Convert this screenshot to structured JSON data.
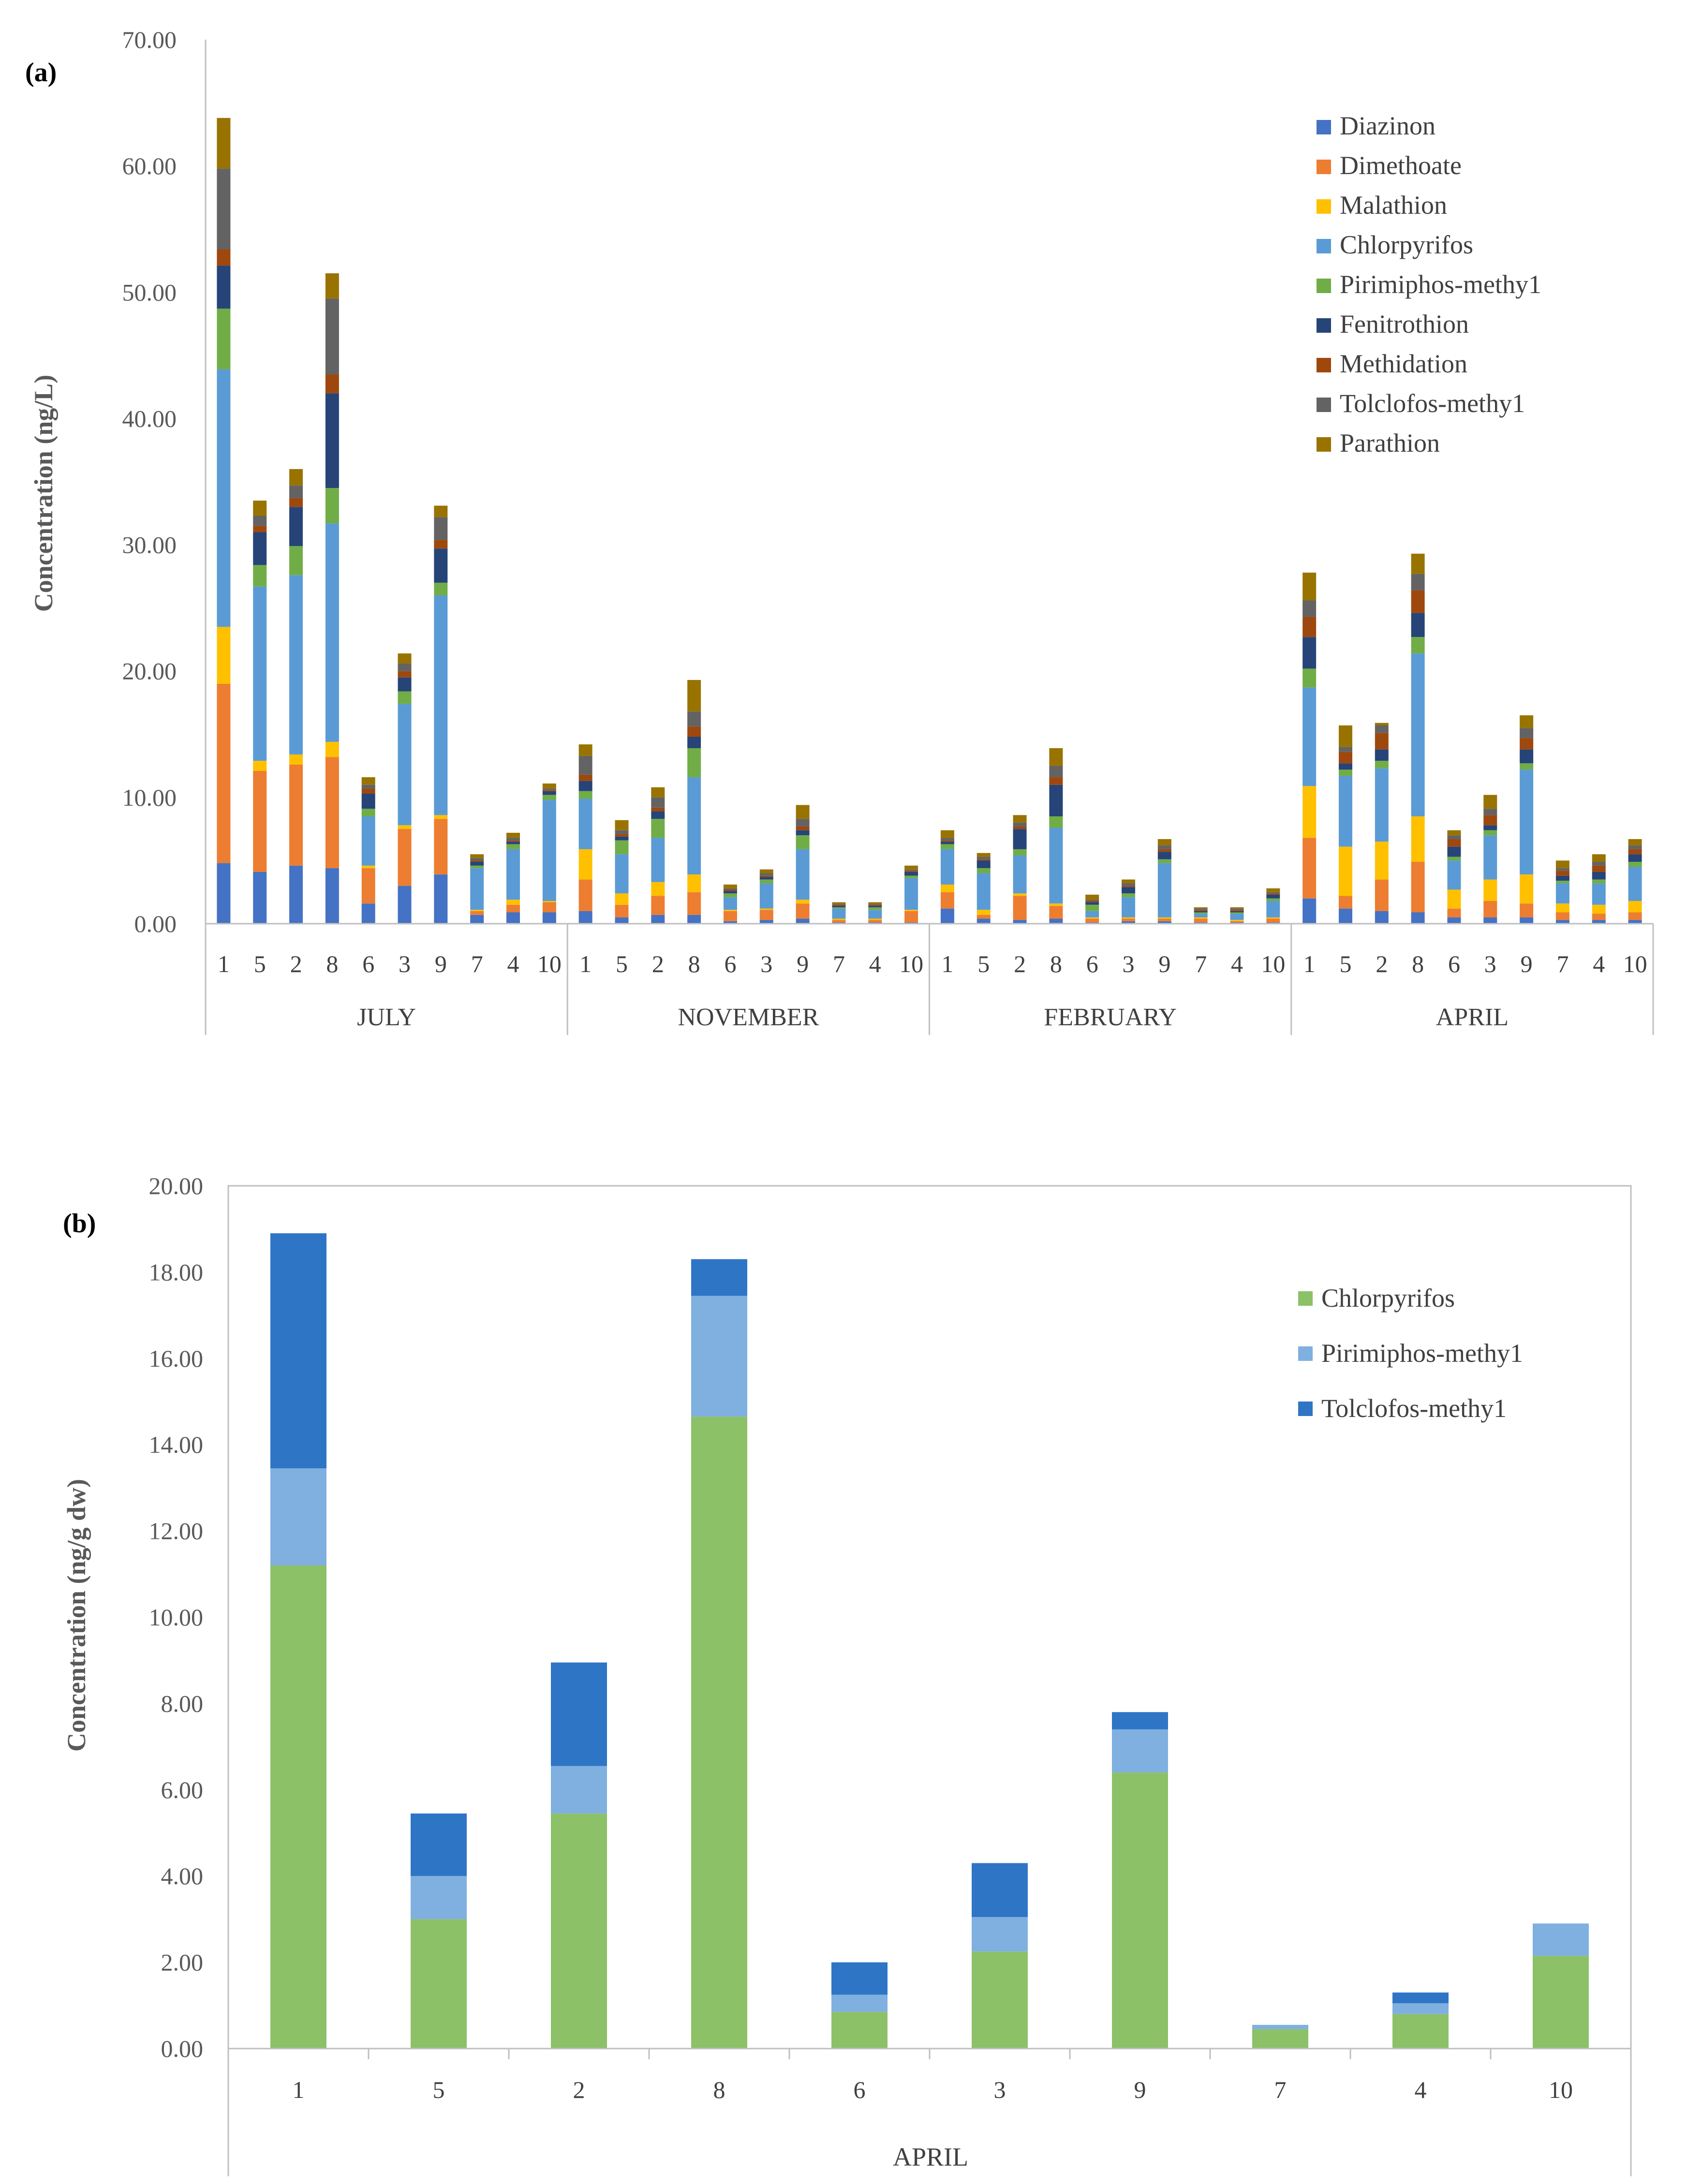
{
  "figure": {
    "background": "#ffffff",
    "axis_color": "#bfbfbf"
  },
  "chart_data": [
    {
      "id": "a",
      "type": "bar",
      "stacked": true,
      "panel_label": "(a)",
      "ylabel": "Concentration (ng/L)",
      "ylim": [
        0,
        70
      ],
      "yticks": [
        0,
        10,
        20,
        30,
        40,
        50,
        60,
        70
      ],
      "ytick_labels": [
        "0.00",
        "10.00",
        "20.00",
        "30.00",
        "40.00",
        "50.00",
        "60.00",
        "70.00"
      ],
      "legend_position": "top-right",
      "groups": [
        "JULY",
        "NOVEMBER",
        "FEBRUARY",
        "APRIL"
      ],
      "categories": [
        "1",
        "5",
        "2",
        "8",
        "6",
        "3",
        "9",
        "7",
        "4",
        "10"
      ],
      "series": [
        {
          "name": "Diazinon",
          "color": "#4472c4",
          "values": [
            [
              4.8,
              4.1,
              4.6,
              4.4,
              1.6,
              3.0,
              3.9,
              0.7,
              0.9,
              0.9
            ],
            [
              1.0,
              0.5,
              0.7,
              0.7,
              0.2,
              0.3,
              0.4,
              0.1,
              0.1,
              0.1
            ],
            [
              1.2,
              0.4,
              0.3,
              0.4,
              0.1,
              0.2,
              0.2,
              0.1,
              0.1,
              0.1
            ],
            [
              2.0,
              1.2,
              1.0,
              0.9,
              0.5,
              0.5,
              0.5,
              0.3,
              0.3,
              0.3
            ]
          ]
        },
        {
          "name": "Dimethoate",
          "color": "#ed7d31",
          "values": [
            [
              14.2,
              8.0,
              8.0,
              8.8,
              2.8,
              4.5,
              4.4,
              0.3,
              0.6,
              0.8
            ],
            [
              2.5,
              1.0,
              1.5,
              1.8,
              0.8,
              0.8,
              1.2,
              0.2,
              0.2,
              0.9
            ],
            [
              1.3,
              0.3,
              1.9,
              1.0,
              0.3,
              0.2,
              0.2,
              0.3,
              0.1,
              0.3
            ],
            [
              4.8,
              1.0,
              2.5,
              4.0,
              0.7,
              1.3,
              1.1,
              0.6,
              0.5,
              0.6
            ]
          ]
        },
        {
          "name": "Malathion",
          "color": "#ffc000",
          "values": [
            [
              4.5,
              0.8,
              0.8,
              1.2,
              0.2,
              0.3,
              0.3,
              0.1,
              0.4,
              0.1
            ],
            [
              2.4,
              0.9,
              1.1,
              1.4,
              0.1,
              0.1,
              0.3,
              0.1,
              0.1,
              0.1
            ],
            [
              0.6,
              0.4,
              0.2,
              0.2,
              0.1,
              0.1,
              0.1,
              0.1,
              0.1,
              0.1
            ],
            [
              4.1,
              3.9,
              3.0,
              3.6,
              1.5,
              1.7,
              2.3,
              0.7,
              0.7,
              0.9
            ]
          ]
        },
        {
          "name": "Chlorpyrifos",
          "color": "#5b9bd5",
          "values": [
            [
              20.4,
              13.8,
              14.2,
              17.3,
              3.9,
              9.6,
              17.4,
              3.3,
              4.0,
              8.0
            ],
            [
              4.0,
              3.1,
              3.5,
              7.7,
              1.0,
              2.0,
              4.0,
              0.8,
              0.7,
              2.5
            ],
            [
              2.8,
              2.9,
              3.0,
              6.0,
              0.5,
              1.6,
              4.3,
              0.3,
              0.5,
              1.3
            ],
            [
              7.8,
              5.6,
              5.8,
              12.9,
              2.3,
              3.5,
              8.3,
              1.6,
              1.7,
              2.7
            ]
          ]
        },
        {
          "name": "Pirimiphos-methy1",
          "color": "#70ad47",
          "values": [
            [
              4.8,
              1.7,
              2.3,
              2.8,
              0.6,
              1.0,
              1.0,
              0.2,
              0.4,
              0.4
            ],
            [
              0.6,
              1.1,
              1.5,
              2.3,
              0.3,
              0.3,
              1.1,
              0.1,
              0.2,
              0.2
            ],
            [
              0.4,
              0.4,
              0.5,
              0.9,
              0.5,
              0.3,
              0.3,
              0.1,
              0.1,
              0.2
            ],
            [
              1.5,
              0.5,
              0.6,
              1.3,
              0.3,
              0.4,
              0.5,
              0.2,
              0.3,
              0.4
            ]
          ]
        },
        {
          "name": "Fenitrothion",
          "color": "#264478",
          "values": [
            [
              3.4,
              2.6,
              3.1,
              7.5,
              1.2,
              1.1,
              2.7,
              0.3,
              0.2,
              0.3
            ],
            [
              0.8,
              0.3,
              0.6,
              0.9,
              0.2,
              0.2,
              0.4,
              0.1,
              0.1,
              0.3
            ],
            [
              0.2,
              0.6,
              1.6,
              2.5,
              0.2,
              0.5,
              0.6,
              0.1,
              0.1,
              0.3
            ],
            [
              2.5,
              0.5,
              0.9,
              1.9,
              0.8,
              0.4,
              1.1,
              0.4,
              0.6,
              0.6
            ]
          ]
        },
        {
          "name": "Methidation",
          "color": "#9e480e",
          "values": [
            [
              1.3,
              0.5,
              0.7,
              1.5,
              0.4,
              0.5,
              0.7,
              0.1,
              0.1,
              0.1
            ],
            [
              0.5,
              0.2,
              0.3,
              0.8,
              0.1,
              0.1,
              0.3,
              0.1,
              0.1,
              0.1
            ],
            [
              0.1,
              0.1,
              0.2,
              0.6,
              0.1,
              0.1,
              0.2,
              0.1,
              0.1,
              0.1
            ],
            [
              1.6,
              0.9,
              1.3,
              1.8,
              0.6,
              0.8,
              0.9,
              0.4,
              0.5,
              0.4
            ]
          ]
        },
        {
          "name": "Tolclofos-methy1",
          "color": "#636363",
          "values": [
            [
              6.4,
              0.8,
              1.0,
              6.0,
              0.3,
              0.6,
              1.8,
              0.2,
              0.2,
              0.1
            ],
            [
              1.5,
              0.3,
              0.8,
              1.2,
              0.1,
              0.2,
              0.6,
              0.1,
              0.1,
              0.1
            ],
            [
              0.2,
              0.2,
              0.3,
              0.9,
              0.1,
              0.2,
              0.3,
              0.1,
              0.1,
              0.1
            ],
            [
              1.3,
              0.4,
              0.6,
              1.3,
              0.3,
              0.5,
              0.8,
              0.2,
              0.3,
              0.3
            ]
          ]
        },
        {
          "name": "Parathion",
          "color": "#997300",
          "values": [
            [
              4.0,
              1.2,
              1.3,
              2.0,
              0.6,
              0.8,
              0.9,
              0.3,
              0.4,
              0.4
            ],
            [
              0.9,
              0.8,
              0.8,
              2.5,
              0.3,
              0.3,
              1.1,
              0.1,
              0.1,
              0.3
            ],
            [
              0.6,
              0.3,
              0.6,
              1.4,
              0.4,
              0.3,
              0.5,
              0.1,
              0.1,
              0.3
            ],
            [
              2.2,
              1.7,
              0.2,
              1.6,
              0.4,
              1.1,
              1.0,
              0.6,
              0.6,
              0.5
            ]
          ]
        }
      ]
    },
    {
      "id": "b",
      "type": "bar",
      "stacked": true,
      "panel_label": "(b)",
      "ylabel": "Concentration (ng/g dw)",
      "xlabel": "APRIL",
      "ylim": [
        0,
        20
      ],
      "yticks": [
        0,
        2,
        4,
        6,
        8,
        10,
        12,
        14,
        16,
        18,
        20
      ],
      "ytick_labels": [
        "0.00",
        "2.00",
        "4.00",
        "6.00",
        "8.00",
        "10.00",
        "12.00",
        "14.00",
        "16.00",
        "18.00",
        "20.00"
      ],
      "legend_position": "top-right",
      "categories": [
        "1",
        "5",
        "2",
        "8",
        "6",
        "3",
        "9",
        "7",
        "4",
        "10"
      ],
      "series": [
        {
          "name": "Chlorpyrifos",
          "color": "#8cc168",
          "values": [
            11.2,
            3.0,
            5.45,
            14.65,
            0.85,
            2.25,
            6.4,
            0.45,
            0.8,
            2.15
          ]
        },
        {
          "name": "Pirimiphos-methy1",
          "color": "#7fb0e0",
          "values": [
            2.25,
            1.0,
            1.1,
            2.8,
            0.4,
            0.8,
            1.0,
            0.1,
            0.25,
            0.75
          ]
        },
        {
          "name": "Tolclofos-methy1",
          "color": "#2e75c6",
          "values": [
            5.45,
            1.45,
            2.4,
            0.85,
            0.75,
            1.25,
            0.4,
            0.0,
            0.25,
            0.0
          ]
        }
      ]
    }
  ]
}
